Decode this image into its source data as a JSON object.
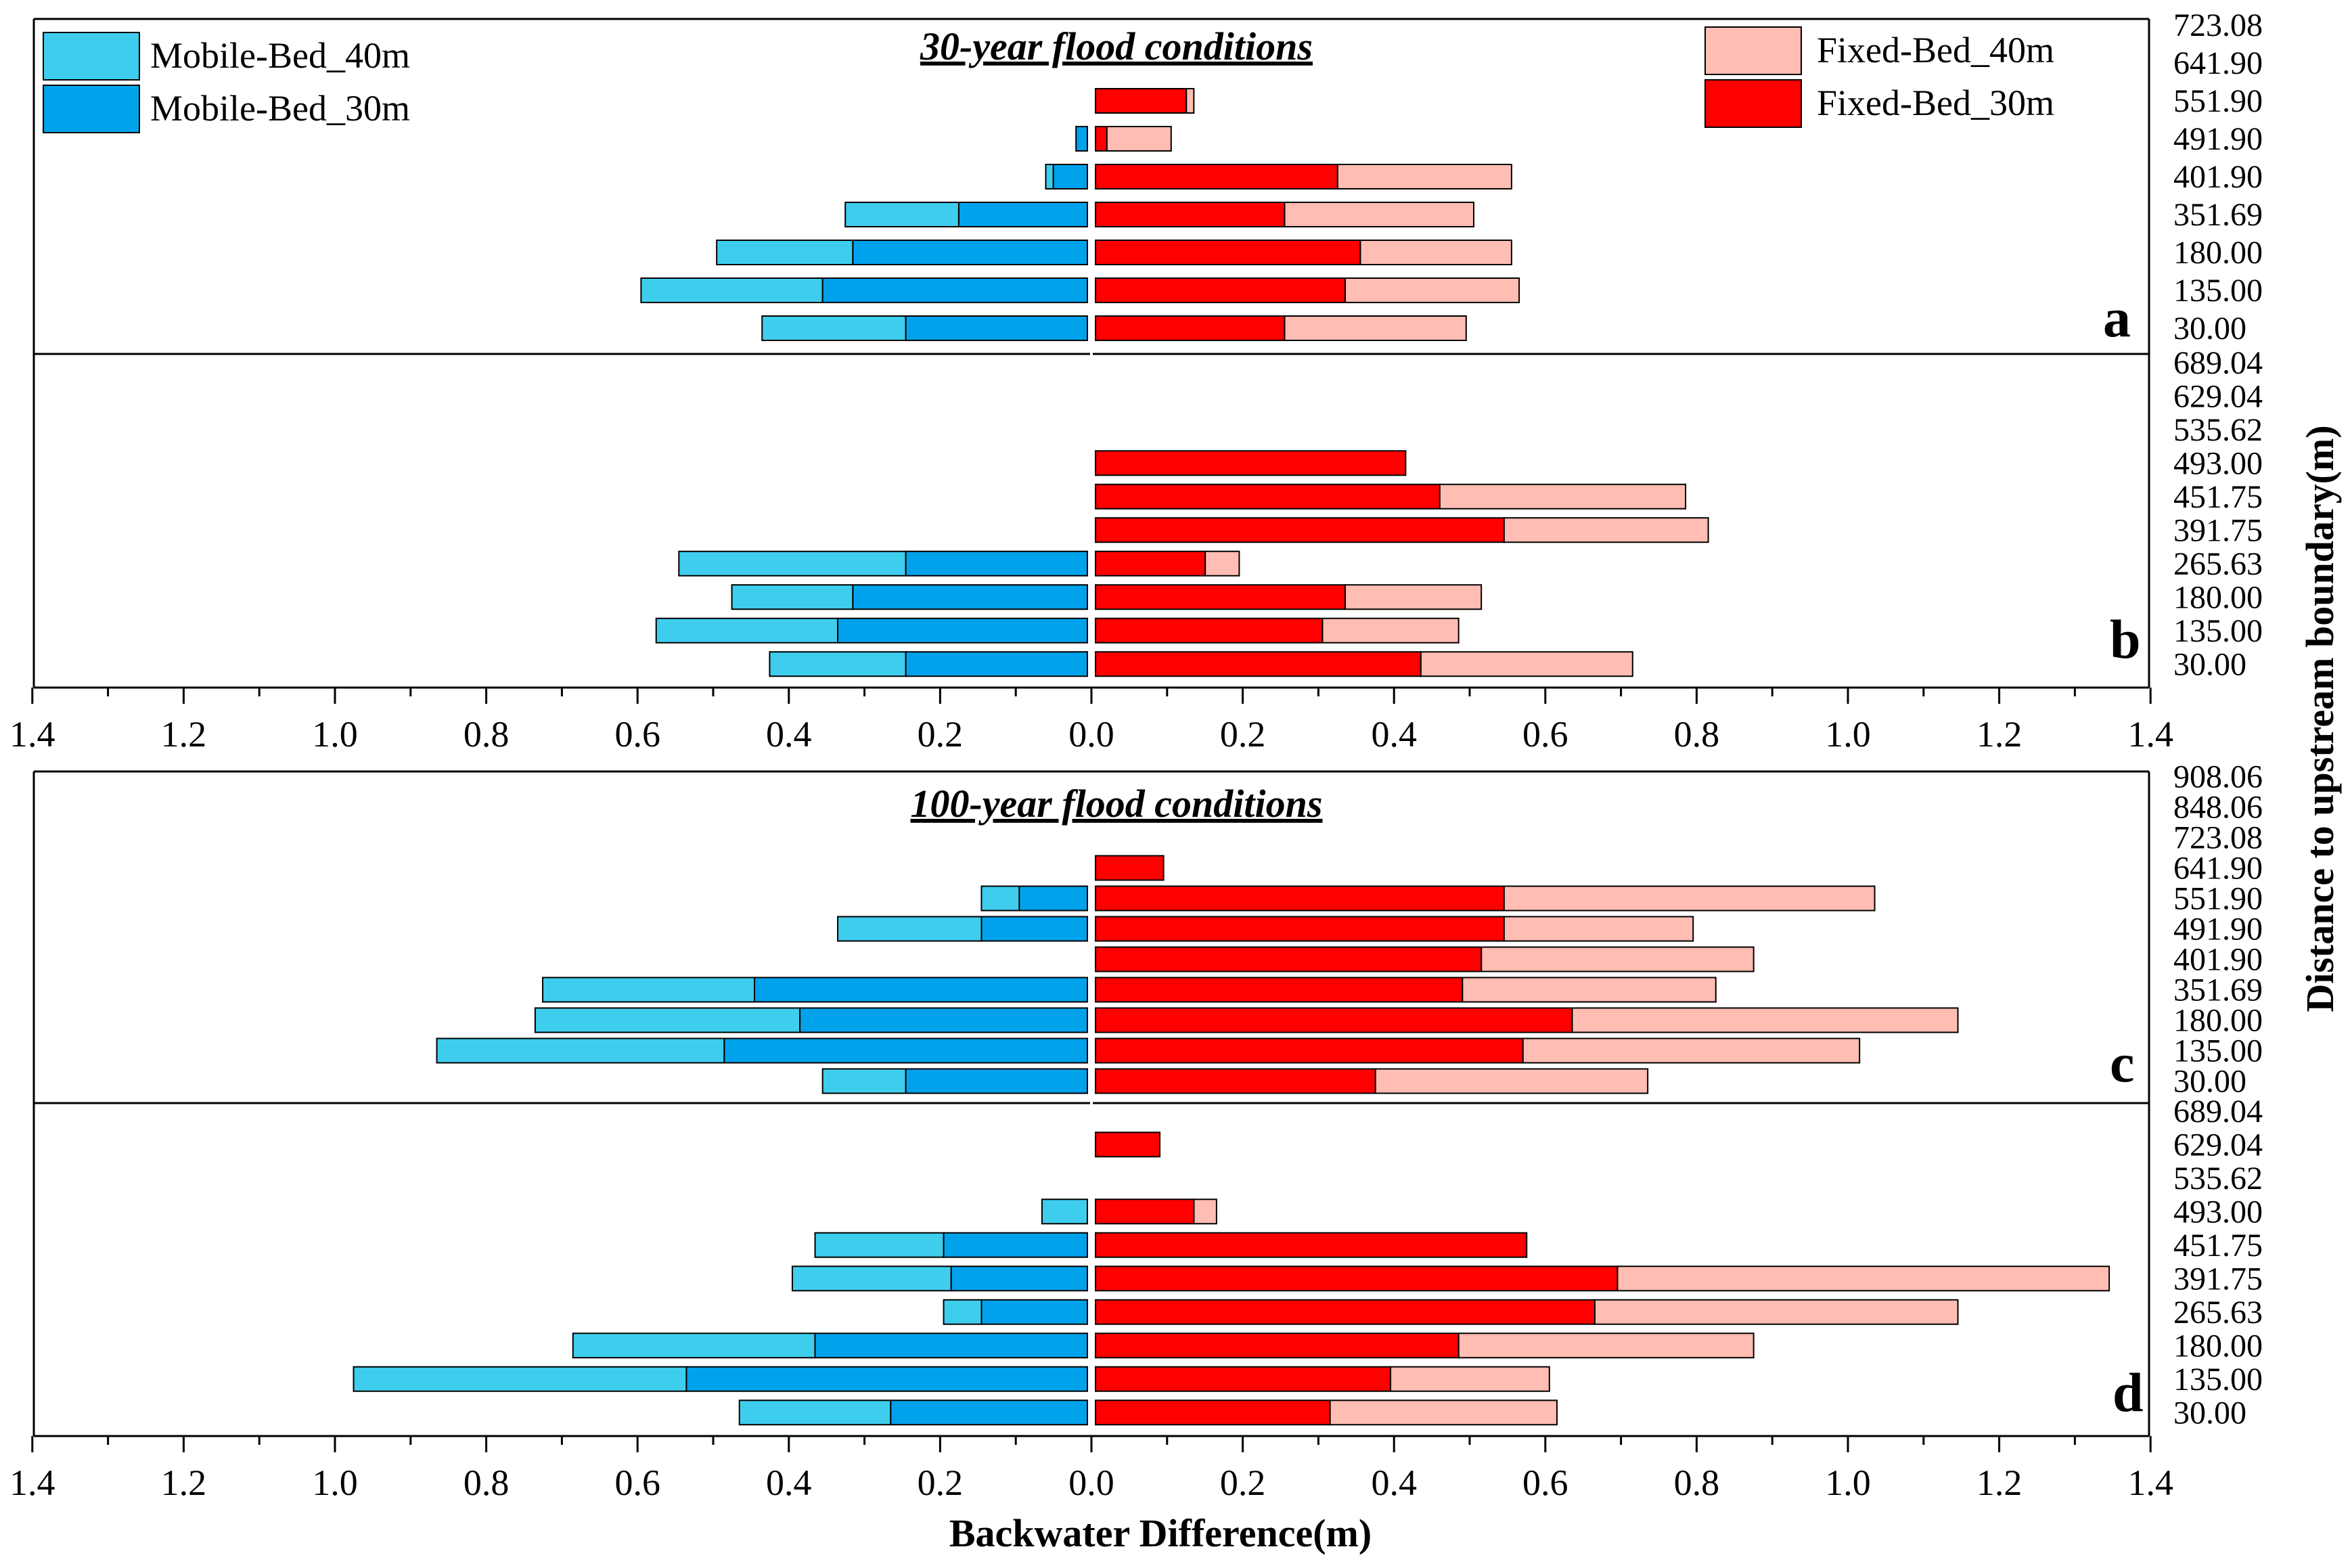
{
  "chart_data": {
    "type": "bar",
    "orientation": "horizontal-diverging",
    "xlabel": "Backwater Difference(m)",
    "ylabel": "Distance to upstream boundary(m)",
    "xlim": [
      -1.4,
      1.4
    ],
    "x_ticks": [
      "1.4",
      "1.2",
      "1.0",
      "0.8",
      "0.6",
      "0.4",
      "0.2",
      "0.0",
      "0.2",
      "0.4",
      "0.6",
      "0.8",
      "1.0",
      "1.2",
      "1.4"
    ],
    "legend": {
      "mobile_40": "Mobile-Bed_40m",
      "mobile_30": "Mobile-Bed_30m",
      "fixed_40": "Fixed-Bed_40m",
      "fixed_30": "Fixed-Bed_30m"
    },
    "colors": {
      "mobile_40": "#3fcdee",
      "mobile_30": "#00a2ec",
      "fixed_40": "#ffbdb3",
      "fixed_30": "#ff0000"
    },
    "groups": [
      {
        "title": "30-year flood conditions"
      },
      {
        "title": "100-year flood conditions"
      }
    ],
    "panels": [
      {
        "letter": "a",
        "categories": [
          "30.00",
          "135.00",
          "180.00",
          "351.69",
          "401.90",
          "491.90",
          "551.90",
          "641.90",
          "723.08"
        ],
        "mobile_40": [
          0.43,
          0.59,
          0.49,
          0.32,
          0.055,
          0.015,
          0,
          0,
          0
        ],
        "mobile_30": [
          0.24,
          0.35,
          0.31,
          0.17,
          0.045,
          0.015,
          0,
          0,
          0
        ],
        "fixed_40": [
          0.49,
          0.56,
          0.55,
          0.5,
          0.55,
          0.1,
          0.13,
          0,
          0
        ],
        "fixed_30": [
          0.25,
          0.33,
          0.35,
          0.25,
          0.32,
          0.015,
          0.12,
          0,
          0
        ]
      },
      {
        "letter": "b",
        "categories": [
          "30.00",
          "135.00",
          "180.00",
          "265.63",
          "391.75",
          "451.75",
          "493.00",
          "535.62",
          "629.04",
          "689.04"
        ],
        "mobile_40": [
          0.42,
          0.57,
          0.47,
          0.54,
          0,
          0,
          0,
          0,
          0,
          0
        ],
        "mobile_30": [
          0.24,
          0.33,
          0.31,
          0.24,
          0,
          0,
          0,
          0,
          0,
          0
        ],
        "fixed_40": [
          0.71,
          0.48,
          0.51,
          0.19,
          0.81,
          0.78,
          0.41,
          0,
          0,
          0
        ],
        "fixed_30": [
          0.43,
          0.3,
          0.33,
          0.145,
          0.54,
          0.455,
          0.41,
          0,
          0,
          0
        ]
      },
      {
        "letter": "c",
        "categories": [
          "30.00",
          "135.00",
          "180.00",
          "351.69",
          "401.90",
          "491.90",
          "551.90",
          "641.90",
          "723.08",
          "848.06",
          "908.06"
        ],
        "mobile_40": [
          0.35,
          0.86,
          0.73,
          0.72,
          0,
          0.33,
          0.14,
          0,
          0,
          0,
          0
        ],
        "mobile_30": [
          0.24,
          0.48,
          0.38,
          0.44,
          0,
          0.14,
          0.09,
          0,
          0,
          0,
          0
        ],
        "fixed_40": [
          0.73,
          1.01,
          1.14,
          0.82,
          0.87,
          0.79,
          1.03,
          0.09,
          0,
          0,
          0
        ],
        "fixed_30": [
          0.37,
          0.565,
          0.63,
          0.485,
          0.51,
          0.54,
          0.54,
          0.09,
          0,
          0,
          0
        ]
      },
      {
        "letter": "d",
        "categories": [
          "30.00",
          "135.00",
          "180.00",
          "265.63",
          "391.75",
          "451.75",
          "493.00",
          "535.62",
          "629.04",
          "689.04"
        ],
        "mobile_40": [
          0.46,
          0.97,
          0.68,
          0.19,
          0.39,
          0.36,
          0.06,
          0,
          0,
          0
        ],
        "mobile_30": [
          0.26,
          0.53,
          0.36,
          0.14,
          0.18,
          0.19,
          0,
          0,
          0,
          0
        ],
        "fixed_40": [
          0.61,
          0.6,
          0.87,
          1.14,
          1.34,
          0.57,
          0.16,
          0,
          0.085,
          0
        ],
        "fixed_30": [
          0.31,
          0.39,
          0.48,
          0.66,
          0.69,
          0.57,
          0.13,
          0,
          0.085,
          0
        ]
      }
    ]
  }
}
